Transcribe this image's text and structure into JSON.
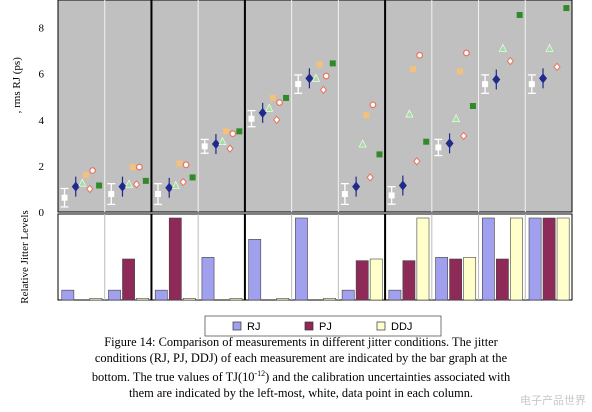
{
  "chart_data": [
    {
      "type": "scatter",
      "ylabel": ", rms RJ (ps)",
      "ylim": [
        0,
        9.2
      ],
      "yticks": [
        "0",
        "2",
        "4",
        "6",
        "8"
      ],
      "grid": false,
      "columns": 11,
      "group_boundaries_after_column": [
        2,
        4,
        7
      ],
      "series": [
        {
          "name": "true-calibration",
          "marker": "white-square-errorbar",
          "color": "#ffffff",
          "points": [
            [
              1,
              0.62
            ],
            [
              2,
              0.78
            ],
            [
              3,
              0.78
            ],
            [
              4,
              2.85
            ],
            [
              5,
              4.05
            ],
            [
              6,
              5.55
            ],
            [
              7,
              0.78
            ],
            [
              8,
              0.72
            ],
            [
              9,
              2.8
            ],
            [
              10,
              5.55
            ],
            [
              11,
              5.55
            ]
          ],
          "err": [
            0.4,
            0.45,
            0.45,
            0.3,
            0.35,
            0.4,
            0.45,
            0.38,
            0.35,
            0.4,
            0.4
          ]
        },
        {
          "name": "RJ",
          "marker": "diamond",
          "color": "#1f2a8c",
          "points": [
            [
              1,
              1.1
            ],
            [
              2,
              1.1
            ],
            [
              3,
              1.05
            ],
            [
              4,
              2.95
            ],
            [
              5,
              4.3
            ],
            [
              6,
              5.8
            ],
            [
              7,
              1.1
            ],
            [
              8,
              1.15
            ],
            [
              9,
              2.98
            ],
            [
              10,
              5.75
            ],
            [
              11,
              5.8
            ]
          ]
        },
        {
          "name": "orange-square",
          "marker": "square",
          "color": "#f5c07a",
          "points": [
            [
              1,
              1.6
            ],
            [
              2,
              1.95
            ],
            [
              3,
              2.1
            ],
            [
              4,
              3.5
            ],
            [
              5,
              4.95
            ],
            [
              6,
              6.4
            ],
            [
              7,
              4.2
            ],
            [
              8,
              6.2
            ],
            [
              9,
              6.1
            ]
          ]
        },
        {
          "name": "red-circle",
          "marker": "circle",
          "color": "#e8735c",
          "points": [
            [
              1,
              1.8
            ],
            [
              2,
              1.95
            ],
            [
              3,
              2.05
            ],
            [
              4,
              3.4
            ],
            [
              5,
              4.75
            ],
            [
              6,
              5.9
            ],
            [
              7,
              4.65
            ],
            [
              8,
              6.8
            ],
            [
              9,
              6.9
            ]
          ]
        },
        {
          "name": "green-triangle",
          "marker": "triangle",
          "color": "#9fe29a",
          "points": [
            [
              1,
              1.25
            ],
            [
              2,
              1.2
            ],
            [
              3,
              1.15
            ],
            [
              4,
              3.05
            ],
            [
              5,
              4.5
            ],
            [
              6,
              5.8
            ],
            [
              7,
              2.95
            ],
            [
              8,
              4.25
            ],
            [
              9,
              4.05
            ],
            [
              10,
              7.1
            ],
            [
              11,
              7.1
            ]
          ]
        },
        {
          "name": "red-diamond-small",
          "marker": "diamond-small",
          "color": "#e8735c",
          "points": [
            [
              1,
              1.0
            ],
            [
              2,
              1.2
            ],
            [
              3,
              1.3
            ],
            [
              4,
              2.75
            ],
            [
              5,
              4.0
            ],
            [
              6,
              5.3
            ],
            [
              7,
              1.5
            ],
            [
              8,
              2.2
            ],
            [
              9,
              3.3
            ],
            [
              10,
              6.55
            ],
            [
              11,
              6.3
            ]
          ]
        },
        {
          "name": "dark-green-square",
          "marker": "square",
          "color": "#2f8a2a",
          "points": [
            [
              1,
              1.15
            ],
            [
              2,
              1.35
            ],
            [
              3,
              1.5
            ],
            [
              4,
              3.5
            ],
            [
              5,
              4.95
            ],
            [
              6,
              6.45
            ],
            [
              7,
              2.5
            ],
            [
              8,
              3.05
            ],
            [
              9,
              4.6
            ],
            [
              10,
              8.55
            ],
            [
              11,
              8.85
            ]
          ]
        }
      ]
    },
    {
      "type": "bar",
      "ylabel": "Relative Jitter Levels",
      "ylim": [
        0,
        1
      ],
      "columns": 11,
      "series": [
        {
          "name": "RJ",
          "color": "#a0a0ee",
          "values": [
            0.12,
            0.12,
            0.12,
            0.52,
            0.74,
            1.0,
            0.12,
            0.12,
            0.52,
            1.0,
            1.0
          ]
        },
        {
          "name": "PJ",
          "color": "#8e2a58",
          "values": [
            0.0,
            0.5,
            1.0,
            0.0,
            0.0,
            0.0,
            0.48,
            0.48,
            0.5,
            0.5,
            1.0
          ]
        },
        {
          "name": "DDJ",
          "color": "#ffffcc",
          "values": [
            0.02,
            0.02,
            0.02,
            0.02,
            0.02,
            0.02,
            0.5,
            1.0,
            0.52,
            1.0,
            1.0
          ]
        }
      ]
    }
  ],
  "legend": {
    "items": [
      {
        "label": "RJ",
        "color": "#a0a0ee"
      },
      {
        "label": "PJ",
        "color": "#8e2a58"
      },
      {
        "label": "DDJ",
        "color": "#ffffcc"
      }
    ]
  },
  "caption": {
    "line1": "Figure 14:  Comparison of measurements in different jitter conditions. The jitter",
    "line2": "conditions (RJ, PJ, DDJ) of each measurement are indicated by the bar graph at the",
    "line3a": "bottom. The true values of TJ(10",
    "line3sup": "-12",
    "line3b": ") and the calibration uncertainties associated with",
    "line4": "them are indicated by the left-most, white, data point in each column."
  },
  "watermark": "电子产品世界"
}
